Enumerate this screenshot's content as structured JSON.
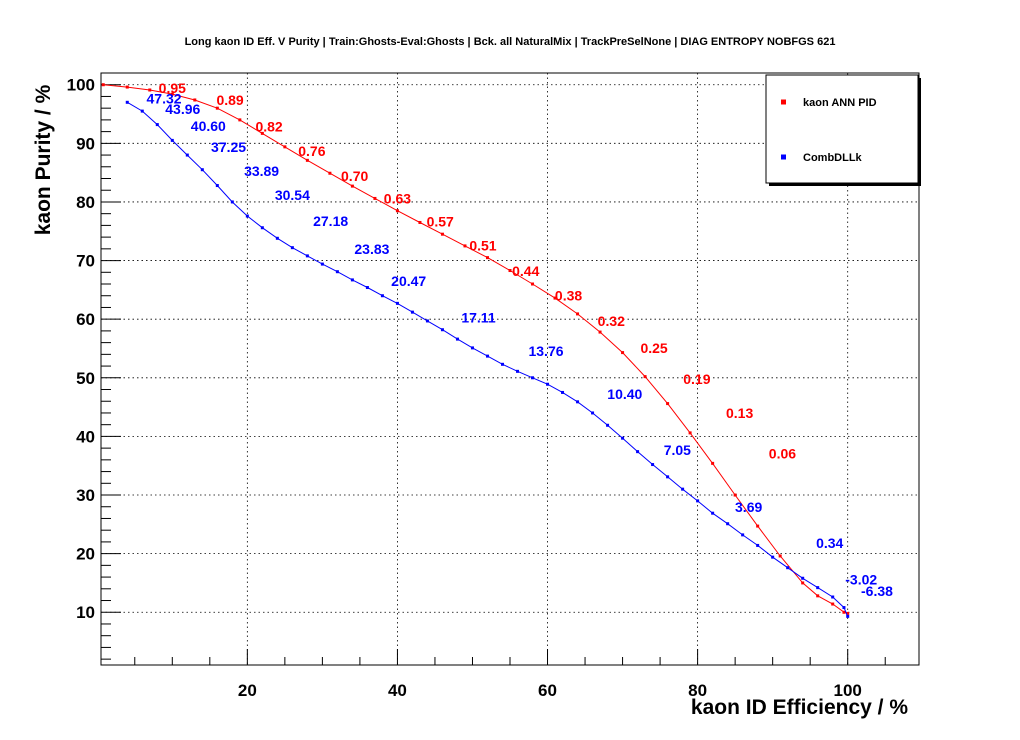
{
  "chart_data": {
    "type": "scatter",
    "title": "Long kaon ID Eff. V Purity | Train:Ghosts-Eval:Ghosts | Bck. all NaturalMix | TrackPreSelNone | DIAG ENTROPY NOBFGS 621",
    "xlabel": "kaon ID Efficiency / %",
    "ylabel": "kaon Purity / %",
    "xlim": [
      0.5,
      109.5
    ],
    "ylim": [
      1.0,
      102.0
    ],
    "x_ticks": [
      20,
      40,
      60,
      80,
      100
    ],
    "y_ticks": [
      10,
      20,
      30,
      40,
      50,
      60,
      70,
      80,
      90,
      100
    ],
    "grid": true,
    "legend_position": "top-right",
    "series": [
      {
        "name": "kaon ANN PID",
        "color": "#ff0000",
        "points": [
          [
            0.8,
            100.0
          ],
          [
            4,
            99.6
          ],
          [
            7,
            99.1
          ],
          [
            10,
            98.4
          ],
          [
            13,
            97.4
          ],
          [
            16,
            96.0
          ],
          [
            19,
            94.0
          ],
          [
            22,
            91.7
          ],
          [
            25,
            89.4
          ],
          [
            28,
            87.1
          ],
          [
            31,
            84.9
          ],
          [
            34,
            82.7
          ],
          [
            37,
            80.6
          ],
          [
            40,
            78.5
          ],
          [
            43,
            76.5
          ],
          [
            46,
            74.5
          ],
          [
            49,
            72.5
          ],
          [
            52,
            70.5
          ],
          [
            55,
            68.3
          ],
          [
            58,
            66.0
          ],
          [
            61,
            63.6
          ],
          [
            64,
            60.9
          ],
          [
            67,
            57.8
          ],
          [
            70,
            54.3
          ],
          [
            73,
            50.2
          ],
          [
            76,
            45.6
          ],
          [
            79,
            40.6
          ],
          [
            82,
            35.4
          ],
          [
            85,
            30.0
          ],
          [
            88,
            24.7
          ],
          [
            91,
            19.6
          ],
          [
            94,
            15.0
          ],
          [
            96,
            12.8
          ],
          [
            98,
            11.4
          ],
          [
            99.5,
            10.0
          ],
          [
            100,
            9.8
          ]
        ],
        "labels": [
          {
            "text": "0.95",
            "x": 10.0,
            "y": 98.6
          },
          {
            "text": "0.89",
            "x": 17.7,
            "y": 96.5
          },
          {
            "text": "0.82",
            "x": 22.9,
            "y": 92.0
          },
          {
            "text": "0.76",
            "x": 28.6,
            "y": 87.8
          },
          {
            "text": "0.70",
            "x": 34.3,
            "y": 83.6
          },
          {
            "text": "0.63",
            "x": 40.0,
            "y": 79.7
          },
          {
            "text": "0.57",
            "x": 45.7,
            "y": 75.8
          },
          {
            "text": "0.51",
            "x": 51.4,
            "y": 71.7
          },
          {
            "text": "0.44",
            "x": 57.1,
            "y": 67.4
          },
          {
            "text": "0.38",
            "x": 62.8,
            "y": 63.2
          },
          {
            "text": "0.32",
            "x": 68.5,
            "y": 58.8
          },
          {
            "text": "0.25",
            "x": 74.2,
            "y": 54.2
          },
          {
            "text": "0.19",
            "x": 79.9,
            "y": 48.9
          },
          {
            "text": "0.13",
            "x": 85.6,
            "y": 43.1
          },
          {
            "text": "0.06",
            "x": 91.3,
            "y": 36.2
          }
        ]
      },
      {
        "name": "CombDLLk",
        "color": "#0000ff",
        "points": [
          [
            4.0,
            97.0
          ],
          [
            6,
            95.5
          ],
          [
            8,
            93.2
          ],
          [
            10,
            90.5
          ],
          [
            12,
            88.0
          ],
          [
            14,
            85.5
          ],
          [
            16,
            82.8
          ],
          [
            18,
            80.0
          ],
          [
            20,
            77.6
          ],
          [
            22,
            75.6
          ],
          [
            24,
            73.8
          ],
          [
            26,
            72.2
          ],
          [
            28,
            70.8
          ],
          [
            30,
            69.4
          ],
          [
            32,
            68.1
          ],
          [
            34,
            66.7
          ],
          [
            36,
            65.4
          ],
          [
            38,
            64.0
          ],
          [
            40,
            62.7
          ],
          [
            42,
            61.2
          ],
          [
            44,
            59.7
          ],
          [
            46,
            58.2
          ],
          [
            48,
            56.6
          ],
          [
            50,
            55.1
          ],
          [
            52,
            53.7
          ],
          [
            54,
            52.3
          ],
          [
            56,
            51.1
          ],
          [
            58,
            50.0
          ],
          [
            60,
            48.9
          ],
          [
            62,
            47.5
          ],
          [
            64,
            45.9
          ],
          [
            66,
            44.0
          ],
          [
            68,
            41.9
          ],
          [
            70,
            39.7
          ],
          [
            72,
            37.4
          ],
          [
            74,
            35.2
          ],
          [
            76,
            33.1
          ],
          [
            78,
            31.0
          ],
          [
            80,
            29.0
          ],
          [
            82,
            26.9
          ],
          [
            84,
            25.1
          ],
          [
            86,
            23.2
          ],
          [
            88,
            21.4
          ],
          [
            90,
            19.4
          ],
          [
            92,
            17.6
          ],
          [
            94,
            15.8
          ],
          [
            96,
            14.2
          ],
          [
            98,
            12.6
          ],
          [
            99.5,
            10.8
          ],
          [
            100,
            9.3
          ]
        ],
        "labels": [
          {
            "text": "47.32",
            "x": 8.9,
            "y": 96.8
          },
          {
            "text": "43.96",
            "x": 11.4,
            "y": 95.0
          },
          {
            "text": "40.60",
            "x": 14.8,
            "y": 92.1
          },
          {
            "text": "37.25",
            "x": 17.5,
            "y": 88.5
          },
          {
            "text": "33.89",
            "x": 21.9,
            "y": 84.4
          },
          {
            "text": "30.54",
            "x": 26.0,
            "y": 80.3
          },
          {
            "text": "27.18",
            "x": 31.1,
            "y": 75.9
          },
          {
            "text": "23.83",
            "x": 36.6,
            "y": 71.1
          },
          {
            "text": "20.47",
            "x": 41.5,
            "y": 65.7
          },
          {
            "text": "17.11",
            "x": 50.8,
            "y": 59.4
          },
          {
            "text": "13.76",
            "x": 59.8,
            "y": 53.7
          },
          {
            "text": "10.40",
            "x": 70.3,
            "y": 46.4
          },
          {
            "text": "7.05",
            "x": 77.3,
            "y": 36.8
          },
          {
            "text": "3.69",
            "x": 86.8,
            "y": 27.1
          },
          {
            "text": "0.34",
            "x": 97.6,
            "y": 21.0
          },
          {
            "text": "-3.02",
            "x": 101.8,
            "y": 14.7
          },
          {
            "text": "-6.38",
            "x": 103.9,
            "y": 12.8
          }
        ]
      }
    ],
    "legend": [
      "kaon ANN PID",
      "CombDLLk"
    ]
  }
}
